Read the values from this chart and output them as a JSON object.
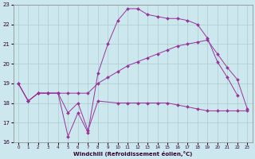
{
  "xlabel": "Windchill (Refroidissement éolien,°C)",
  "bg_color": "#cce8ee",
  "grid_color": "#aacccc",
  "line_color": "#993399",
  "xlim": [
    -0.5,
    23.5
  ],
  "ylim": [
    16,
    23
  ],
  "xticks": [
    0,
    1,
    2,
    3,
    4,
    5,
    6,
    7,
    8,
    9,
    10,
    11,
    12,
    13,
    14,
    15,
    16,
    17,
    18,
    19,
    20,
    21,
    22,
    23
  ],
  "yticks": [
    16,
    17,
    18,
    19,
    20,
    21,
    22,
    23
  ],
  "line1_x": [
    0,
    1,
    2,
    3,
    4,
    5,
    6,
    7,
    8,
    10,
    11,
    12,
    13,
    14,
    15,
    16,
    17,
    18,
    19,
    20,
    21,
    22,
    23
  ],
  "line1_y": [
    19.0,
    18.1,
    18.5,
    18.5,
    18.5,
    17.5,
    18.0,
    16.6,
    18.1,
    18.0,
    18.0,
    18.0,
    18.0,
    18.0,
    18.0,
    17.9,
    17.8,
    17.7,
    17.6,
    17.6,
    17.6,
    17.6,
    17.6
  ],
  "line2_x": [
    0,
    1,
    2,
    3,
    4,
    5,
    6,
    7,
    8,
    9,
    10,
    11,
    12,
    13,
    14,
    15,
    16,
    17,
    18,
    19,
    20,
    21,
    22
  ],
  "line2_y": [
    19.0,
    18.1,
    18.5,
    18.5,
    18.5,
    16.3,
    17.5,
    16.5,
    19.5,
    21.0,
    22.2,
    22.8,
    22.8,
    22.5,
    22.4,
    22.3,
    22.3,
    22.2,
    22.0,
    21.3,
    20.1,
    19.3,
    18.4
  ],
  "line3_x": [
    0,
    1,
    2,
    3,
    4,
    5,
    6,
    7,
    8,
    9,
    10,
    11,
    12,
    13,
    14,
    15,
    16,
    17,
    18,
    19,
    20,
    21,
    22,
    23
  ],
  "line3_y": [
    19.0,
    18.1,
    18.5,
    18.5,
    18.5,
    18.5,
    18.5,
    18.5,
    19.0,
    19.3,
    19.6,
    19.9,
    20.1,
    20.3,
    20.5,
    20.7,
    20.9,
    21.0,
    21.1,
    21.2,
    20.5,
    19.8,
    19.2,
    17.7
  ]
}
